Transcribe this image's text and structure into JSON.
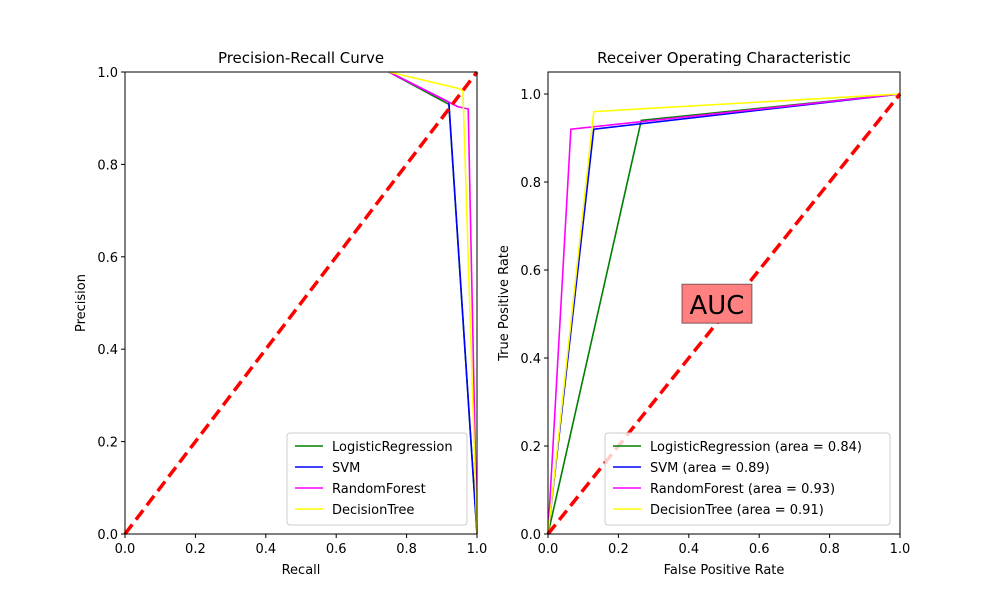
{
  "chart_data": [
    {
      "type": "line",
      "title": "Precision-Recall Curve",
      "xlabel": "Recall",
      "ylabel": "Precision",
      "xlim": [
        0,
        1
      ],
      "ylim": [
        0,
        1
      ],
      "grid": false,
      "legend_position": "lower-right",
      "xticks": [
        "0.0",
        "0.2",
        "0.4",
        "0.6",
        "0.8",
        "1.0"
      ],
      "yticks": [
        "0.0",
        "0.2",
        "0.4",
        "0.6",
        "0.8",
        "1.0"
      ],
      "series": [
        {
          "name": "LogisticRegression",
          "color": "#008000",
          "x": [
            1.0,
            0.92,
            0.75
          ],
          "y": [
            0.0,
            0.93,
            1.0
          ]
        },
        {
          "name": "SVM",
          "color": "#0000ff",
          "x": [
            1.0,
            0.92,
            0.75
          ],
          "y": [
            0.0,
            0.935,
            1.0
          ]
        },
        {
          "name": "RandomForest",
          "color": "#ff00ff",
          "x": [
            1.0,
            0.975,
            0.945,
            0.75
          ],
          "y": [
            0.0,
            0.92,
            0.925,
            1.0
          ]
        },
        {
          "name": "DecisionTree",
          "color": "#ffff00",
          "x": [
            1.0,
            0.96,
            0.945,
            0.75
          ],
          "y": [
            0.0,
            0.96,
            0.965,
            1.0
          ]
        }
      ],
      "reference_line": {
        "color": "#ff0000",
        "x": [
          0,
          1
        ],
        "y": [
          0,
          1
        ],
        "style": "dashed"
      }
    },
    {
      "type": "line",
      "title": "Receiver Operating Characteristic",
      "xlabel": "False Positive Rate",
      "ylabel": "True Positive Rate",
      "xlim": [
        0,
        1
      ],
      "ylim": [
        0,
        1.05
      ],
      "grid": false,
      "legend_position": "lower-right",
      "xticks": [
        "0.0",
        "0.2",
        "0.4",
        "0.6",
        "0.8",
        "1.0"
      ],
      "yticks": [
        "0.0",
        "0.2",
        "0.4",
        "0.6",
        "0.8",
        "1.0"
      ],
      "annotation": {
        "text": "AUC",
        "x": 0.48,
        "y": 0.52,
        "background": "#ff8080"
      },
      "series": [
        {
          "name": "LogisticRegression (area = 0.84)",
          "color": "#008000",
          "x": [
            0,
            0.265,
            1
          ],
          "y": [
            0,
            0.94,
            1
          ]
        },
        {
          "name": "SVM (area = 0.89)",
          "color": "#0000ff",
          "x": [
            0,
            0.13,
            1
          ],
          "y": [
            0,
            0.92,
            1
          ]
        },
        {
          "name": "RandomForest (area = 0.93)",
          "color": "#ff00ff",
          "x": [
            0,
            0.065,
            1
          ],
          "y": [
            0,
            0.92,
            1
          ]
        },
        {
          "name": "DecisionTree (area = 0.91)",
          "color": "#ffff00",
          "x": [
            0,
            0.13,
            1
          ],
          "y": [
            0,
            0.96,
            1
          ]
        }
      ],
      "reference_line": {
        "color": "#ff0000",
        "x": [
          0,
          1
        ],
        "y": [
          0,
          1
        ],
        "style": "dashed"
      }
    }
  ]
}
